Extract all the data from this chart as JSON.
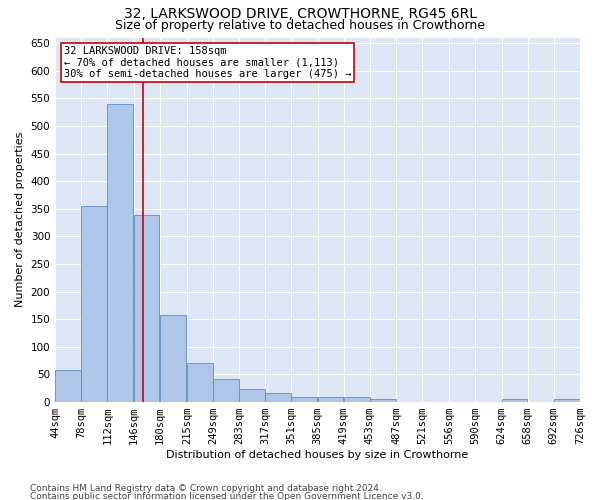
{
  "title": "32, LARKSWOOD DRIVE, CROWTHORNE, RG45 6RL",
  "subtitle": "Size of property relative to detached houses in Crowthorne",
  "xlabel": "Distribution of detached houses by size in Crowthorne",
  "ylabel": "Number of detached properties",
  "property_size": 158,
  "bin_edges": [
    44,
    78,
    112,
    146,
    180,
    215,
    249,
    283,
    317,
    351,
    385,
    419,
    453,
    487,
    521,
    556,
    590,
    624,
    658,
    692,
    726
  ],
  "bin_labels": [
    "44sqm",
    "78sqm",
    "112sqm",
    "146sqm",
    "180sqm",
    "215sqm",
    "249sqm",
    "283sqm",
    "317sqm",
    "351sqm",
    "385sqm",
    "419sqm",
    "453sqm",
    "487sqm",
    "521sqm",
    "556sqm",
    "590sqm",
    "624sqm",
    "658sqm",
    "692sqm",
    "726sqm"
  ],
  "bar_heights": [
    58,
    355,
    540,
    338,
    157,
    70,
    42,
    24,
    16,
    10,
    9,
    9,
    5,
    1,
    1,
    1,
    0,
    5,
    0,
    5
  ],
  "bar_color": "#aec6e8",
  "bar_edge_color": "#5a8fc0",
  "red_line_color": "#cc0000",
  "annotation_box_color": "#cc0000",
  "annotation_line1": "32 LARKSWOOD DRIVE: 158sqm",
  "annotation_line2": "← 70% of detached houses are smaller (1,113)",
  "annotation_line3": "30% of semi-detached houses are larger (475) →",
  "ylim": [
    0,
    660
  ],
  "yticks": [
    0,
    50,
    100,
    150,
    200,
    250,
    300,
    350,
    400,
    450,
    500,
    550,
    600,
    650
  ],
  "plot_bg_color": "#dce6f5",
  "footer_line1": "Contains HM Land Registry data © Crown copyright and database right 2024.",
  "footer_line2": "Contains public sector information licensed under the Open Government Licence v3.0.",
  "title_fontsize": 10,
  "subtitle_fontsize": 9,
  "axis_label_fontsize": 8,
  "tick_fontsize": 7.5,
  "annotation_fontsize": 7.5,
  "footer_fontsize": 6.5
}
